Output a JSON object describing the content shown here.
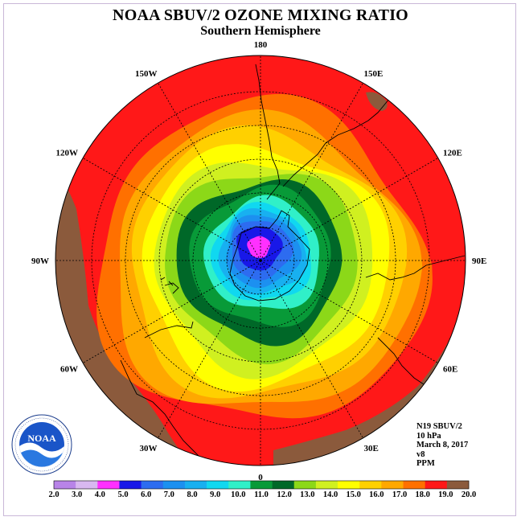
{
  "title": "NOAA SBUV/2 OZONE MIXING RATIO",
  "subtitle": "Southern Hemisphere",
  "info": {
    "satellite": "N19 SBUV/2",
    "pressure": "10 hPa",
    "date": "March 8, 2017",
    "version": "v8",
    "units": "PPM"
  },
  "longitude_labels": [
    {
      "text": "90W",
      "angle": 180
    },
    {
      "text": "60W",
      "angle": 150
    },
    {
      "text": "30W",
      "angle": 120
    },
    {
      "text": "0",
      "angle": 90
    },
    {
      "text": "30E",
      "angle": 60
    },
    {
      "text": "60E",
      "angle": 30
    },
    {
      "text": "90E",
      "angle": 0
    },
    {
      "text": "120E",
      "angle": -30
    },
    {
      "text": "150E",
      "angle": -60
    },
    {
      "text": "180",
      "angle": -90
    },
    {
      "text": "150W",
      "angle": -120
    },
    {
      "text": "120W",
      "angle": -150
    }
  ],
  "colorbar": {
    "labels": [
      "2.0",
      "3.0",
      "4.0",
      "5.0",
      "6.0",
      "7.0",
      "8.0",
      "9.0",
      "10.0",
      "11.0",
      "12.0",
      "13.0",
      "14.0",
      "15.0",
      "16.0",
      "17.0",
      "18.0",
      "19.0",
      "20.0"
    ],
    "colors": [
      "#b884e8",
      "#d8b8f0",
      "#ff30ff",
      "#1818e8",
      "#2d6cf0",
      "#1c90f0",
      "#18b0f0",
      "#10d8f0",
      "#30f0c8",
      "#089a38",
      "#006828",
      "#8cd818",
      "#d0f020",
      "#ffff00",
      "#ffd000",
      "#ffa800",
      "#ff7000",
      "#ff1818",
      "#8b5a3c"
    ]
  },
  "map": {
    "ocean_color": "#ff1818",
    "edge_color": "#8b5a3c",
    "contour_levels": [
      {
        "value": 18.0,
        "color": "#ff7000"
      },
      {
        "value": 17.0,
        "color": "#ffa800"
      },
      {
        "value": 16.0,
        "color": "#ffd000"
      },
      {
        "value": 15.0,
        "color": "#ffff00"
      },
      {
        "value": 14.0,
        "color": "#d0f020"
      },
      {
        "value": 13.0,
        "color": "#8cd818"
      },
      {
        "value": 12.0,
        "color": "#006828"
      },
      {
        "value": 11.0,
        "color": "#089a38"
      },
      {
        "value": 10.0,
        "color": "#30f0c8"
      },
      {
        "value": 9.0,
        "color": "#10d8f0"
      },
      {
        "value": 8.0,
        "color": "#18b0f0"
      },
      {
        "value": 7.0,
        "color": "#1c90f0"
      },
      {
        "value": 6.0,
        "color": "#2d6cf0"
      },
      {
        "value": 5.0,
        "color": "#1818e8"
      },
      {
        "value": 4.0,
        "color": "#ff30ff"
      }
    ]
  },
  "logo": {
    "text": "NOAA",
    "ring_text": "NATIONAL OCEANIC AND ATMOSPHERIC ADMINISTRATION · U.S. DEPARTMENT OF COMMERCE"
  }
}
